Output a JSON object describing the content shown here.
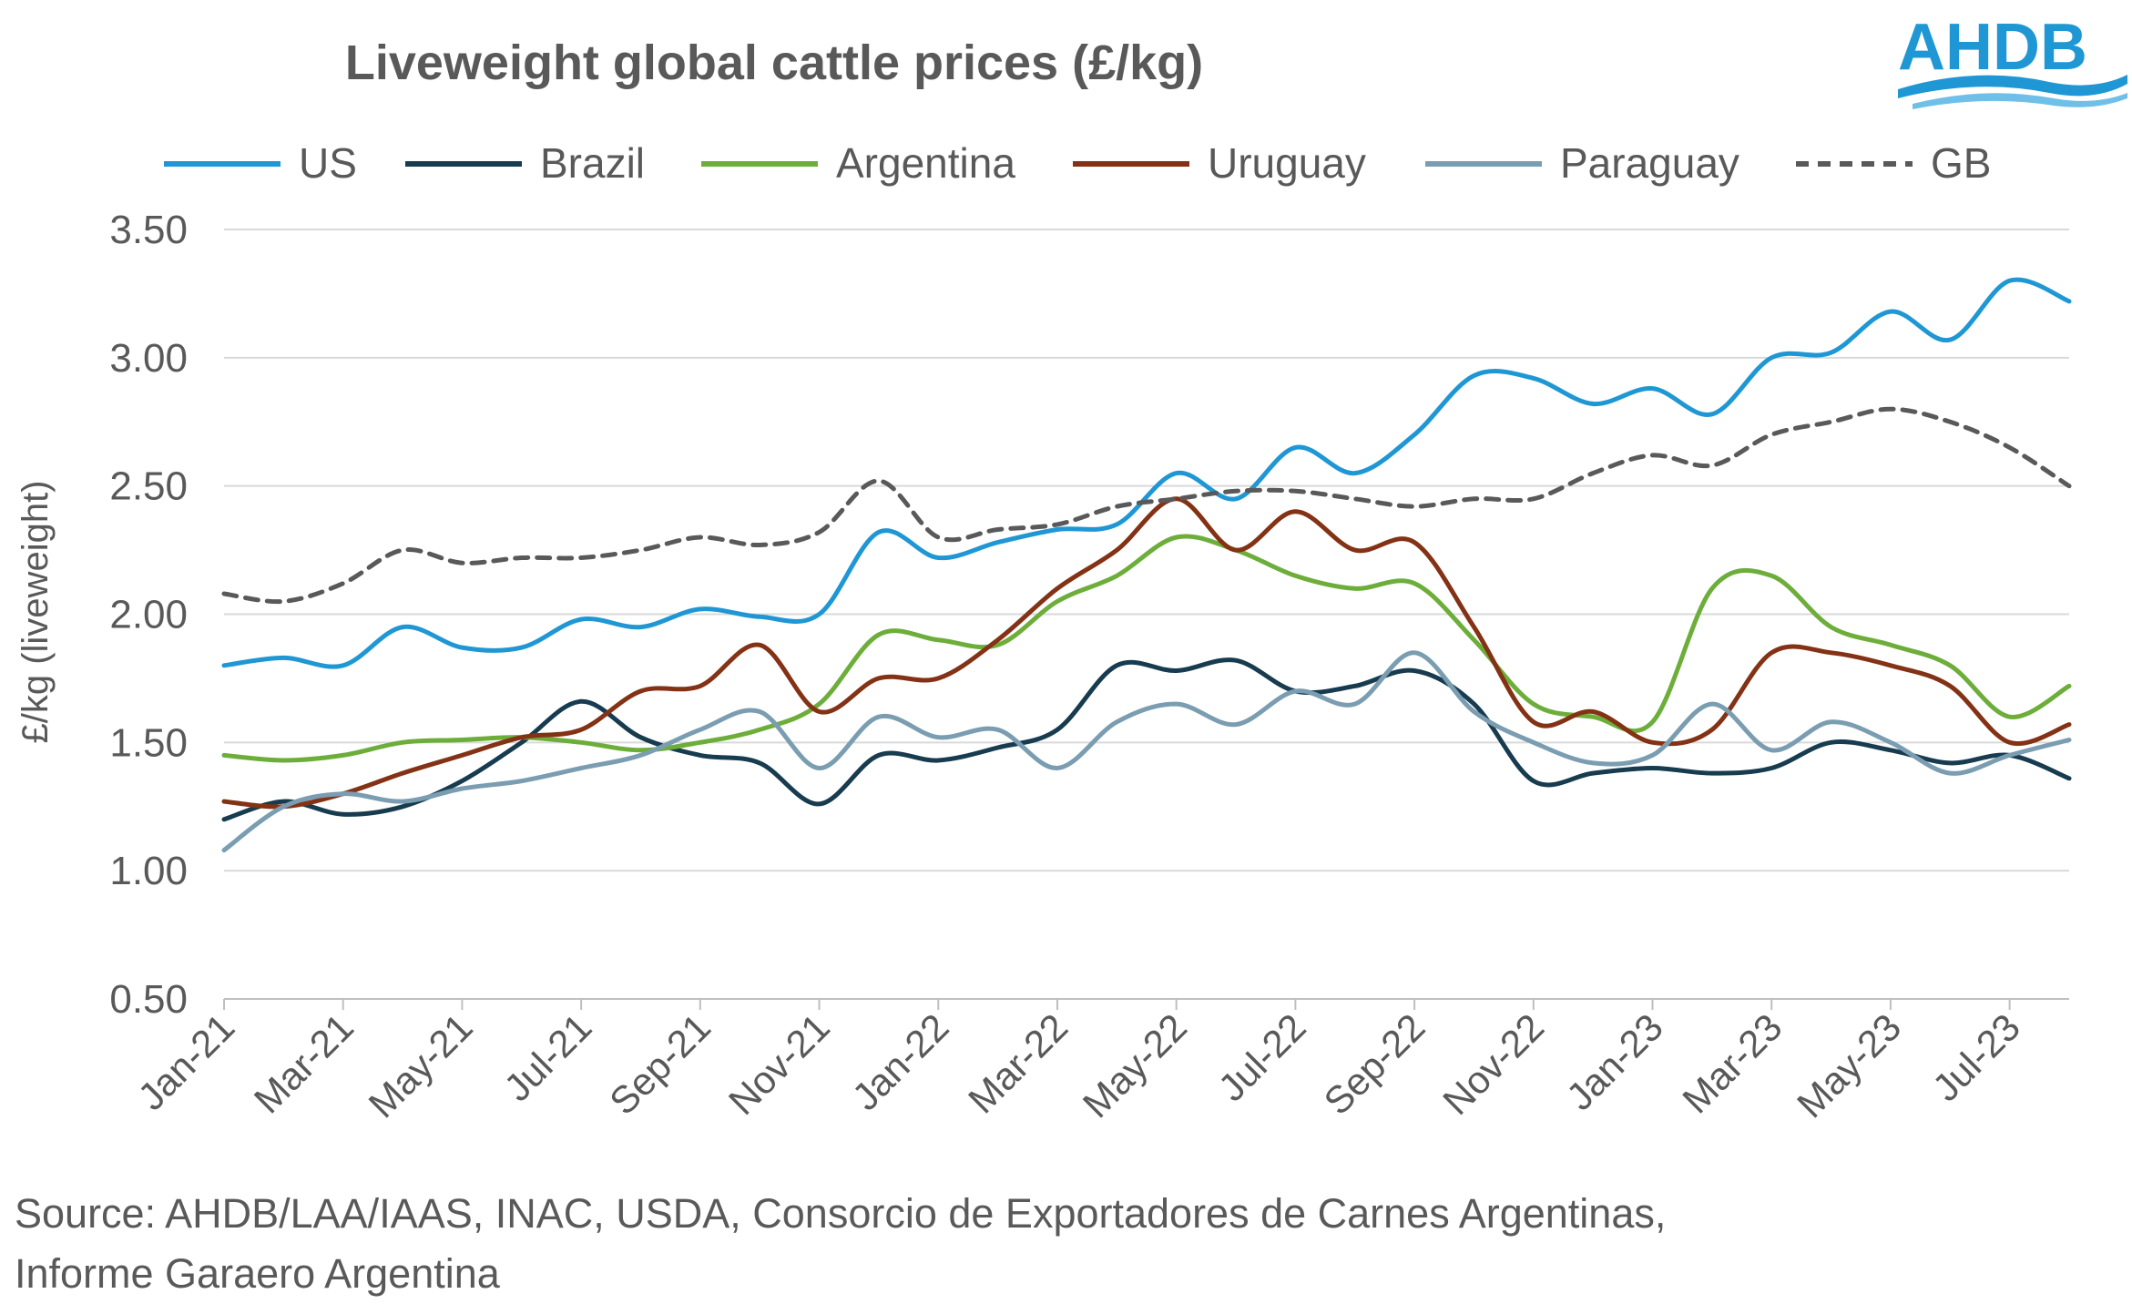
{
  "title": "Liveweight global cattle prices (£/kg)",
  "logo_text": "AHDB",
  "source": "Source: AHDB/LAA/IAAS, INAC, USDA, Consorcio de Exportadores de Carnes Argentinas, Informe Garaero Argentina",
  "chart_data": {
    "type": "line",
    "title": "Liveweight global cattle prices (£/kg)",
    "xlabel": "",
    "ylabel": "£/kg (liveweight)",
    "ylim": [
      0.5,
      3.5
    ],
    "yticks": [
      "3.50",
      "3.00",
      "2.50",
      "2.00",
      "1.50",
      "1.00",
      "0.50"
    ],
    "xticks": [
      "Jan-21",
      "Mar-21",
      "May-21",
      "Jul-21",
      "Sep-21",
      "Nov-21",
      "Jan-22",
      "Mar-22",
      "May-22",
      "Jul-22",
      "Sep-22",
      "Nov-22",
      "Jan-23",
      "Mar-23",
      "May-23",
      "Jul-23"
    ],
    "x_range": [
      "2021-01",
      "2023-08"
    ],
    "grid": "horizontal",
    "legend_position": "top",
    "series": [
      {
        "name": "US",
        "color": "#1F97D4",
        "dash": false,
        "x": [
          "2021-01",
          "2021-02",
          "2021-03",
          "2021-04",
          "2021-05",
          "2021-06",
          "2021-07",
          "2021-08",
          "2021-09",
          "2021-10",
          "2021-11",
          "2021-12",
          "2022-01",
          "2022-02",
          "2022-03",
          "2022-04",
          "2022-05",
          "2022-06",
          "2022-07",
          "2022-08",
          "2022-09",
          "2022-10",
          "2022-11",
          "2022-12",
          "2023-01",
          "2023-02",
          "2023-03",
          "2023-04",
          "2023-05",
          "2023-06",
          "2023-07",
          "2023-08"
        ],
        "y": [
          1.8,
          1.83,
          1.8,
          1.95,
          1.87,
          1.87,
          1.98,
          1.95,
          2.02,
          1.99,
          2.0,
          2.32,
          2.22,
          2.28,
          2.33,
          2.35,
          2.55,
          2.45,
          2.65,
          2.55,
          2.7,
          2.93,
          2.92,
          2.82,
          2.88,
          2.78,
          3.0,
          3.02,
          3.18,
          3.07,
          3.3,
          3.22
        ]
      },
      {
        "name": "Brazil",
        "color": "#173B4F",
        "dash": false,
        "x": [
          "2021-01",
          "2021-02",
          "2021-03",
          "2021-04",
          "2021-05",
          "2021-06",
          "2021-07",
          "2021-08",
          "2021-09",
          "2021-10",
          "2021-11",
          "2021-12",
          "2022-01",
          "2022-02",
          "2022-03",
          "2022-04",
          "2022-05",
          "2022-06",
          "2022-07",
          "2022-08",
          "2022-09",
          "2022-10",
          "2022-11",
          "2022-12",
          "2023-01",
          "2023-02",
          "2023-03",
          "2023-04",
          "2023-05",
          "2023-06",
          "2023-07",
          "2023-08"
        ],
        "y": [
          1.2,
          1.27,
          1.22,
          1.25,
          1.35,
          1.5,
          1.66,
          1.52,
          1.45,
          1.42,
          1.26,
          1.45,
          1.43,
          1.48,
          1.55,
          1.8,
          1.78,
          1.82,
          1.7,
          1.72,
          1.78,
          1.65,
          1.35,
          1.38,
          1.4,
          1.38,
          1.4,
          1.5,
          1.47,
          1.42,
          1.45,
          1.36
        ]
      },
      {
        "name": "Argentina",
        "color": "#6DAE3B",
        "dash": false,
        "x": [
          "2021-01",
          "2021-02",
          "2021-03",
          "2021-04",
          "2021-05",
          "2021-06",
          "2021-07",
          "2021-08",
          "2021-09",
          "2021-10",
          "2021-11",
          "2021-12",
          "2022-01",
          "2022-02",
          "2022-03",
          "2022-04",
          "2022-05",
          "2022-06",
          "2022-07",
          "2022-08",
          "2022-09",
          "2022-10",
          "2022-11",
          "2022-12",
          "2023-01",
          "2023-02",
          "2023-03",
          "2023-04",
          "2023-05",
          "2023-06",
          "2023-07",
          "2023-08"
        ],
        "y": [
          1.45,
          1.43,
          1.45,
          1.5,
          1.51,
          1.52,
          1.5,
          1.47,
          1.5,
          1.55,
          1.65,
          1.92,
          1.9,
          1.88,
          2.05,
          2.15,
          2.3,
          2.25,
          2.15,
          2.1,
          2.12,
          1.9,
          1.65,
          1.6,
          1.58,
          2.1,
          2.15,
          1.95,
          1.88,
          1.8,
          1.6,
          1.72
        ]
      },
      {
        "name": "Uruguay",
        "color": "#843215",
        "dash": false,
        "x": [
          "2021-01",
          "2021-02",
          "2021-03",
          "2021-04",
          "2021-05",
          "2021-06",
          "2021-07",
          "2021-08",
          "2021-09",
          "2021-10",
          "2021-11",
          "2021-12",
          "2022-01",
          "2022-02",
          "2022-03",
          "2022-04",
          "2022-05",
          "2022-06",
          "2022-07",
          "2022-08",
          "2022-09",
          "2022-10",
          "2022-11",
          "2022-12",
          "2023-01",
          "2023-02",
          "2023-03",
          "2023-04",
          "2023-05",
          "2023-06",
          "2023-07",
          "2023-08"
        ],
        "y": [
          1.27,
          1.25,
          1.3,
          1.38,
          1.45,
          1.52,
          1.55,
          1.7,
          1.72,
          1.88,
          1.62,
          1.75,
          1.75,
          1.9,
          2.1,
          2.25,
          2.45,
          2.25,
          2.4,
          2.25,
          2.28,
          1.95,
          1.58,
          1.62,
          1.5,
          1.55,
          1.85,
          1.85,
          1.8,
          1.72,
          1.5,
          1.57
        ]
      },
      {
        "name": "Paraguay",
        "color": "#7A9DB1",
        "dash": false,
        "x": [
          "2021-01",
          "2021-02",
          "2021-03",
          "2021-04",
          "2021-05",
          "2021-06",
          "2021-07",
          "2021-08",
          "2021-09",
          "2021-10",
          "2021-11",
          "2021-12",
          "2022-01",
          "2022-02",
          "2022-03",
          "2022-04",
          "2022-05",
          "2022-06",
          "2022-07",
          "2022-08",
          "2022-09",
          "2022-10",
          "2022-11",
          "2022-12",
          "2023-01",
          "2023-02",
          "2023-03",
          "2023-04",
          "2023-05",
          "2023-06",
          "2023-07",
          "2023-08"
        ],
        "y": [
          1.08,
          1.25,
          1.3,
          1.27,
          1.32,
          1.35,
          1.4,
          1.45,
          1.55,
          1.62,
          1.4,
          1.6,
          1.52,
          1.55,
          1.4,
          1.58,
          1.65,
          1.57,
          1.7,
          1.65,
          1.85,
          1.62,
          1.5,
          1.42,
          1.45,
          1.65,
          1.47,
          1.58,
          1.5,
          1.38,
          1.45,
          1.51
        ]
      },
      {
        "name": "GB",
        "color": "#595959",
        "dash": true,
        "x": [
          "2021-01",
          "2021-02",
          "2021-03",
          "2021-04",
          "2021-05",
          "2021-06",
          "2021-07",
          "2021-08",
          "2021-09",
          "2021-10",
          "2021-11",
          "2021-12",
          "2022-01",
          "2022-02",
          "2022-03",
          "2022-04",
          "2022-05",
          "2022-06",
          "2022-07",
          "2022-08",
          "2022-09",
          "2022-10",
          "2022-11",
          "2022-12",
          "2023-01",
          "2023-02",
          "2023-03",
          "2023-04",
          "2023-05",
          "2023-06",
          "2023-07",
          "2023-08"
        ],
        "y": [
          2.08,
          2.05,
          2.12,
          2.25,
          2.2,
          2.22,
          2.22,
          2.25,
          2.3,
          2.27,
          2.32,
          2.52,
          2.3,
          2.33,
          2.35,
          2.42,
          2.45,
          2.48,
          2.48,
          2.45,
          2.42,
          2.45,
          2.45,
          2.55,
          2.62,
          2.58,
          2.7,
          2.75,
          2.8,
          2.75,
          2.65,
          2.5
        ]
      }
    ]
  }
}
